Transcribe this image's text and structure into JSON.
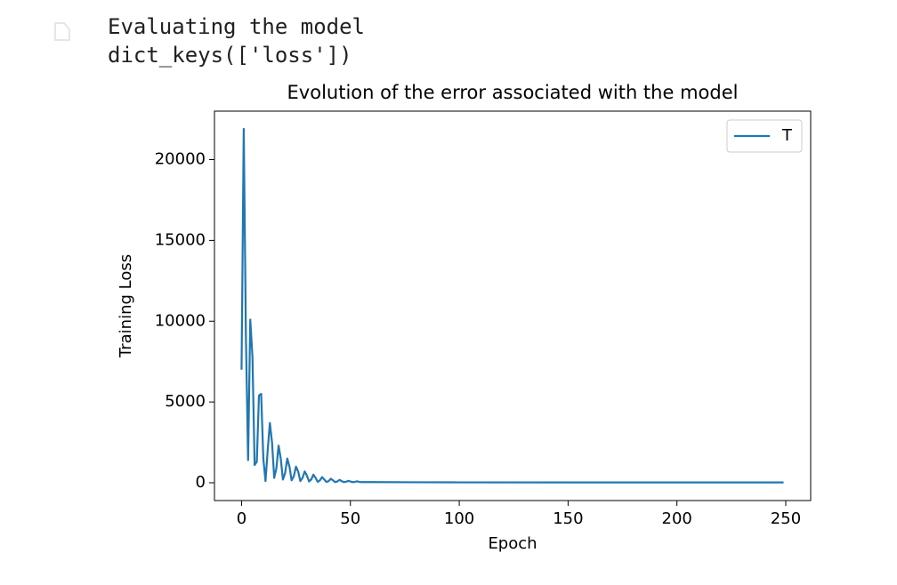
{
  "output": {
    "lines": [
      "Evaluating the model",
      "dict_keys(['loss'])"
    ]
  },
  "chart_data": {
    "type": "line",
    "title": "Evolution of the error associated with the model",
    "xlabel": "Epoch",
    "ylabel": "Training Loss",
    "x": [
      0,
      1,
      2,
      3,
      4,
      5,
      6,
      7,
      8,
      9,
      10,
      11,
      12,
      13,
      14,
      15,
      16,
      17,
      18,
      19,
      20,
      21,
      22,
      23,
      24,
      25,
      26,
      27,
      28,
      29,
      30,
      31,
      32,
      33,
      34,
      35,
      36,
      37,
      38,
      39,
      40,
      41,
      42,
      43,
      44,
      45,
      46,
      47,
      48,
      49,
      50,
      51,
      52,
      53,
      54,
      55,
      60,
      80,
      100,
      150,
      200,
      249
    ],
    "series": [
      {
        "name": "T",
        "color": "#1f77b4",
        "values": [
          7000,
          21900,
          9000,
          1400,
          10100,
          7800,
          1100,
          1300,
          5400,
          5500,
          1500,
          100,
          2000,
          3700,
          2500,
          300,
          900,
          2300,
          1500,
          200,
          600,
          1500,
          1000,
          150,
          400,
          1000,
          700,
          100,
          300,
          700,
          450,
          80,
          200,
          500,
          300,
          60,
          150,
          350,
          200,
          50,
          100,
          250,
          150,
          40,
          80,
          180,
          100,
          40,
          60,
          120,
          80,
          40,
          50,
          90,
          60,
          40,
          40,
          30,
          25,
          20,
          20,
          20
        ]
      }
    ],
    "xlim": [
      -12.45,
      261.45
    ],
    "ylim": [
      -1100,
      23000
    ],
    "xticks": [
      0,
      50,
      100,
      150,
      200,
      250
    ],
    "yticks": [
      0,
      5000,
      10000,
      15000,
      20000
    ],
    "legend": "upper right"
  }
}
